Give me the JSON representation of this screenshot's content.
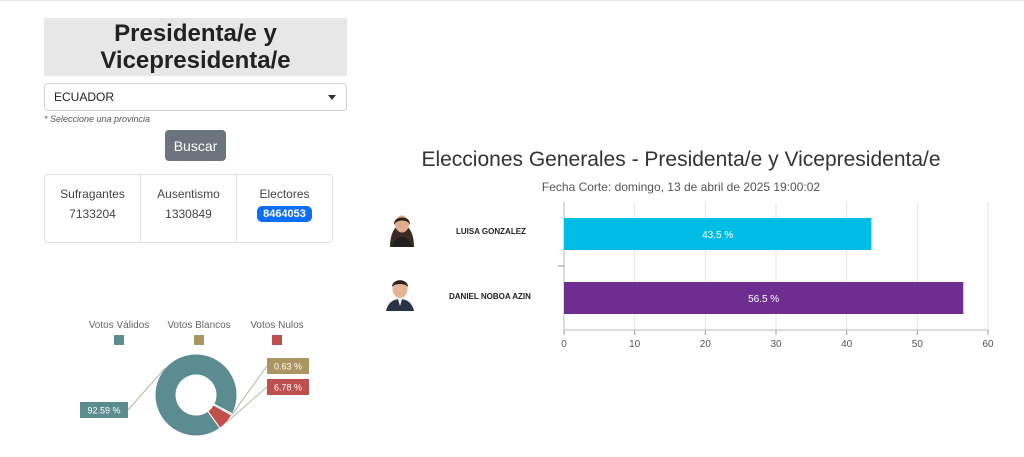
{
  "panel": {
    "title": "Presidenta/e y Vicepresidenta/e",
    "select_value": "ECUADOR",
    "hint": "* Seleccione una provincia",
    "search_label": "Buscar"
  },
  "stats": {
    "sufragantes_label": "Sufragantes",
    "sufragantes_value": "7133204",
    "ausentismo_label": "Ausentismo",
    "ausentismo_value": "1330849",
    "electores_label": "Electores",
    "electores_value": "8464053"
  },
  "chart_data": [
    {
      "type": "bar",
      "orientation": "horizontal",
      "title": "Elecciones Generales - Presidenta/e y Vicepresidenta/e",
      "subtitle": "Fecha Corte: domingo, 13 de abril de 2025 19:00:02",
      "categories": [
        "LUISA GONZALEZ",
        "DANIEL NOBOA AZIN"
      ],
      "values": [
        43.5,
        56.5
      ],
      "data_labels": [
        "43.5 %",
        "56.5 %"
      ],
      "colors": [
        "#00bde6",
        "#6f2c91"
      ],
      "xlim": [
        0,
        60
      ],
      "xticks": [
        0,
        10,
        20,
        30,
        40,
        50,
        60
      ],
      "grid": true
    },
    {
      "type": "pie",
      "variant": "donut",
      "legend": "top",
      "labels": [
        "Votos Válidos",
        "Votos Blancos",
        "Votos Nulos"
      ],
      "values": [
        92.59,
        0.63,
        6.78
      ],
      "data_labels": [
        "92.59 %",
        "0.63 %",
        "6.78 %"
      ],
      "colors": [
        "#5b8c8f",
        "#ad9560",
        "#c0504d"
      ]
    }
  ]
}
